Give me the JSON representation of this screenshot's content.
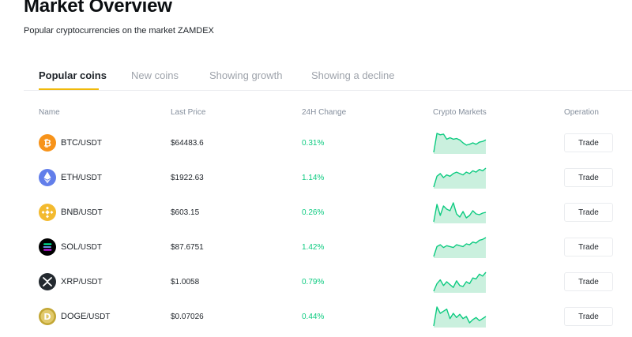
{
  "header": {
    "title": "Market Overview",
    "subtitle": "Popular cryptocurrencies on the market ZAMDEX"
  },
  "tabs": [
    {
      "label": "Popular coins",
      "active": true
    },
    {
      "label": "New coins",
      "active": false
    },
    {
      "label": "Showing growth",
      "active": false
    },
    {
      "label": "Showing a decline",
      "active": false
    }
  ],
  "table": {
    "columns": [
      "Name",
      "Last Price",
      "24H Change",
      "Crypto Markets",
      "Operation"
    ],
    "trade_label": "Trade",
    "rows": [
      {
        "base": "BTC",
        "quote": "/USDT",
        "price": "$64483.6",
        "change": "0.31%",
        "icon": "btc-icon",
        "color": "#f7931a",
        "spark": [
          4,
          30,
          28,
          29,
          22,
          24,
          22,
          23,
          21,
          17,
          14,
          15,
          17,
          15,
          18,
          19,
          21
        ]
      },
      {
        "base": "ETH",
        "quote": "/USDT",
        "price": "$1922.63",
        "change": "1.14%",
        "icon": "eth-icon",
        "color": "#627eea",
        "spark": [
          4,
          12,
          14,
          11,
          13,
          12,
          14,
          15,
          14,
          13,
          15,
          14,
          16,
          15,
          17,
          16,
          18
        ]
      },
      {
        "base": "BNB",
        "quote": "/USDT",
        "price": "$603.15",
        "change": "0.26%",
        "icon": "bnb-icon",
        "color": "#f3ba2f",
        "spark": [
          6,
          28,
          14,
          26,
          22,
          20,
          30,
          16,
          12,
          19,
          11,
          14,
          20,
          16,
          15,
          17,
          18
        ]
      },
      {
        "base": "SOL",
        "quote": "/USDT",
        "price": "$87.6751",
        "change": "1.42%",
        "icon": "sol-icon",
        "color": "#000000",
        "spark": [
          3,
          14,
          16,
          13,
          15,
          14,
          13,
          16,
          15,
          14,
          17,
          16,
          19,
          18,
          21,
          22,
          24
        ]
      },
      {
        "base": "XRP",
        "quote": "/USDT",
        "price": "$1.0058",
        "change": "0.79%",
        "icon": "xrp-icon",
        "color": "#23292f",
        "spark": [
          4,
          12,
          16,
          10,
          14,
          11,
          8,
          15,
          10,
          9,
          14,
          12,
          18,
          17,
          22,
          20,
          24
        ]
      },
      {
        "base": "DOGE",
        "quote": "/USDT",
        "price": "$0.07026",
        "change": "0.44%",
        "icon": "doge-icon",
        "color": "#c2a633",
        "spark": [
          10,
          28,
          22,
          24,
          26,
          17,
          22,
          18,
          21,
          17,
          19,
          13,
          16,
          18,
          15,
          17,
          19
        ]
      }
    ]
  },
  "colors": {
    "accent": "#f0b90b",
    "positive": "#0ecb81",
    "muted_text": "#848e9c"
  }
}
